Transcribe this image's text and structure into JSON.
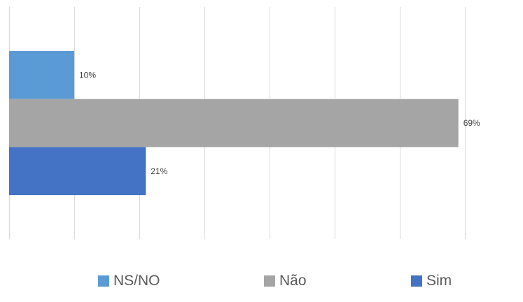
{
  "chart_data": {
    "type": "bar",
    "orientation": "horizontal",
    "title": "",
    "xlabel": "",
    "ylabel": "",
    "xlim": [
      0,
      70
    ],
    "grid": true,
    "legend_position": "bottom",
    "value_format": "percent",
    "series": [
      {
        "name": "NS/NO",
        "value": 10,
        "label": "10%",
        "color": "#5b9bd5"
      },
      {
        "name": "Não",
        "value": 69,
        "label": "69%",
        "color": "#a5a5a5"
      },
      {
        "name": "Sim",
        "value": 21,
        "label": "21%",
        "color": "#4472c4"
      }
    ]
  }
}
